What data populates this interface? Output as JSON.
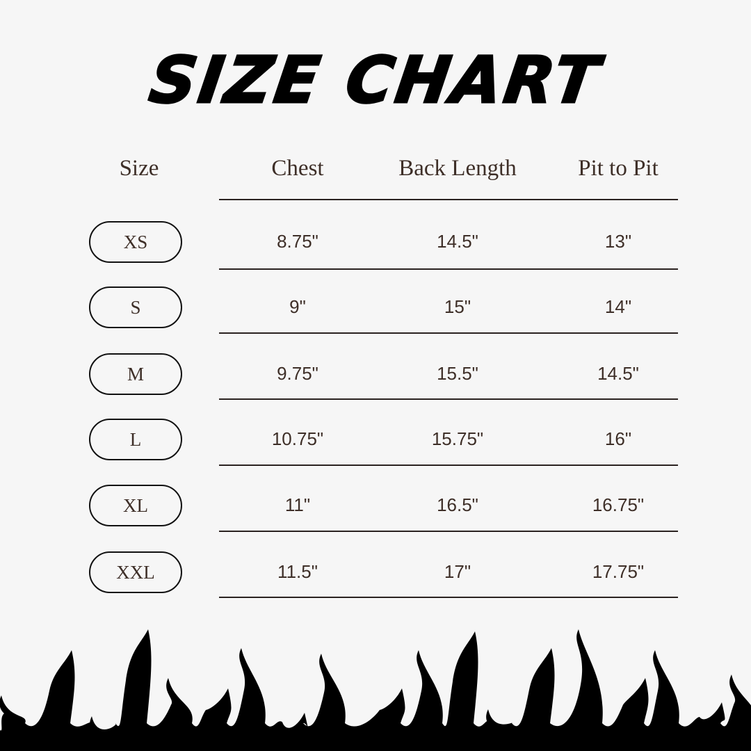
{
  "title": "SIZE CHART",
  "headers": [
    "Size",
    "Chest",
    "Back Length",
    "Pit to Pit"
  ],
  "rows": [
    {
      "size": "XS",
      "chest": "8.75\"",
      "back_length": "14.5\"",
      "pit_to_pit": "13\""
    },
    {
      "size": "S",
      "chest": "9\"",
      "back_length": "15\"",
      "pit_to_pit": "14\""
    },
    {
      "size": "M",
      "chest": "9.75\"",
      "back_length": "15.5\"",
      "pit_to_pit": "14.5\""
    },
    {
      "size": "L",
      "chest": "10.75\"",
      "back_length": "15.75\"",
      "pit_to_pit": "16\""
    },
    {
      "size": "XL",
      "chest": "11\"",
      "back_length": "16.5\"",
      "pit_to_pit": "16.75\""
    },
    {
      "size": "XXL",
      "chest": "11.5\"",
      "back_length": "17\"",
      "pit_to_pit": "17.75\""
    }
  ],
  "colors": {
    "background": "#f6f6f6",
    "text": "#3e2f28",
    "flames": "#000000"
  },
  "decoration": "flames-border"
}
